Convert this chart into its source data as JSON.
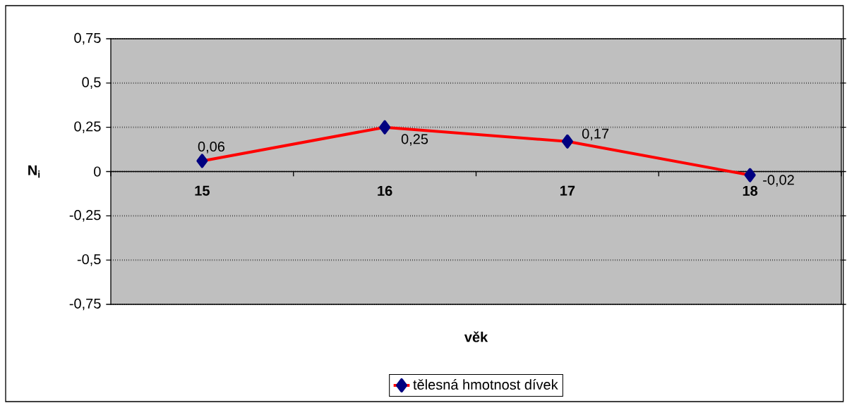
{
  "chart_data": {
    "type": "line",
    "xlabel": "věk",
    "ylabel": "N$_{i}$",
    "categories": [
      "15",
      "16",
      "17",
      "18"
    ],
    "series": [
      {
        "name": "tělesná hmotnost dívek",
        "color": "#ff0000",
        "values": [
          0.06,
          0.25,
          0.17,
          -0.02
        ],
        "value_labels": [
          "0,06",
          "0,25",
          "0,17",
          "-0,02"
        ]
      }
    ],
    "ylim": [
      -0.75,
      0.75
    ],
    "yticks": [
      {
        "value": -0.75,
        "label": "-0,75"
      },
      {
        "value": -0.5,
        "label": "-0,5"
      },
      {
        "value": -0.25,
        "label": "-0,25"
      },
      0,
      {
        "value": 0.25,
        "label": "0,25"
      },
      {
        "value": 0.5,
        "label": "0,5"
      },
      {
        "value": 0.75,
        "label": "0,75"
      }
    ],
    "grid": "y",
    "legend": "bottom",
    "marker": "diamond",
    "line_style": "solid"
  }
}
